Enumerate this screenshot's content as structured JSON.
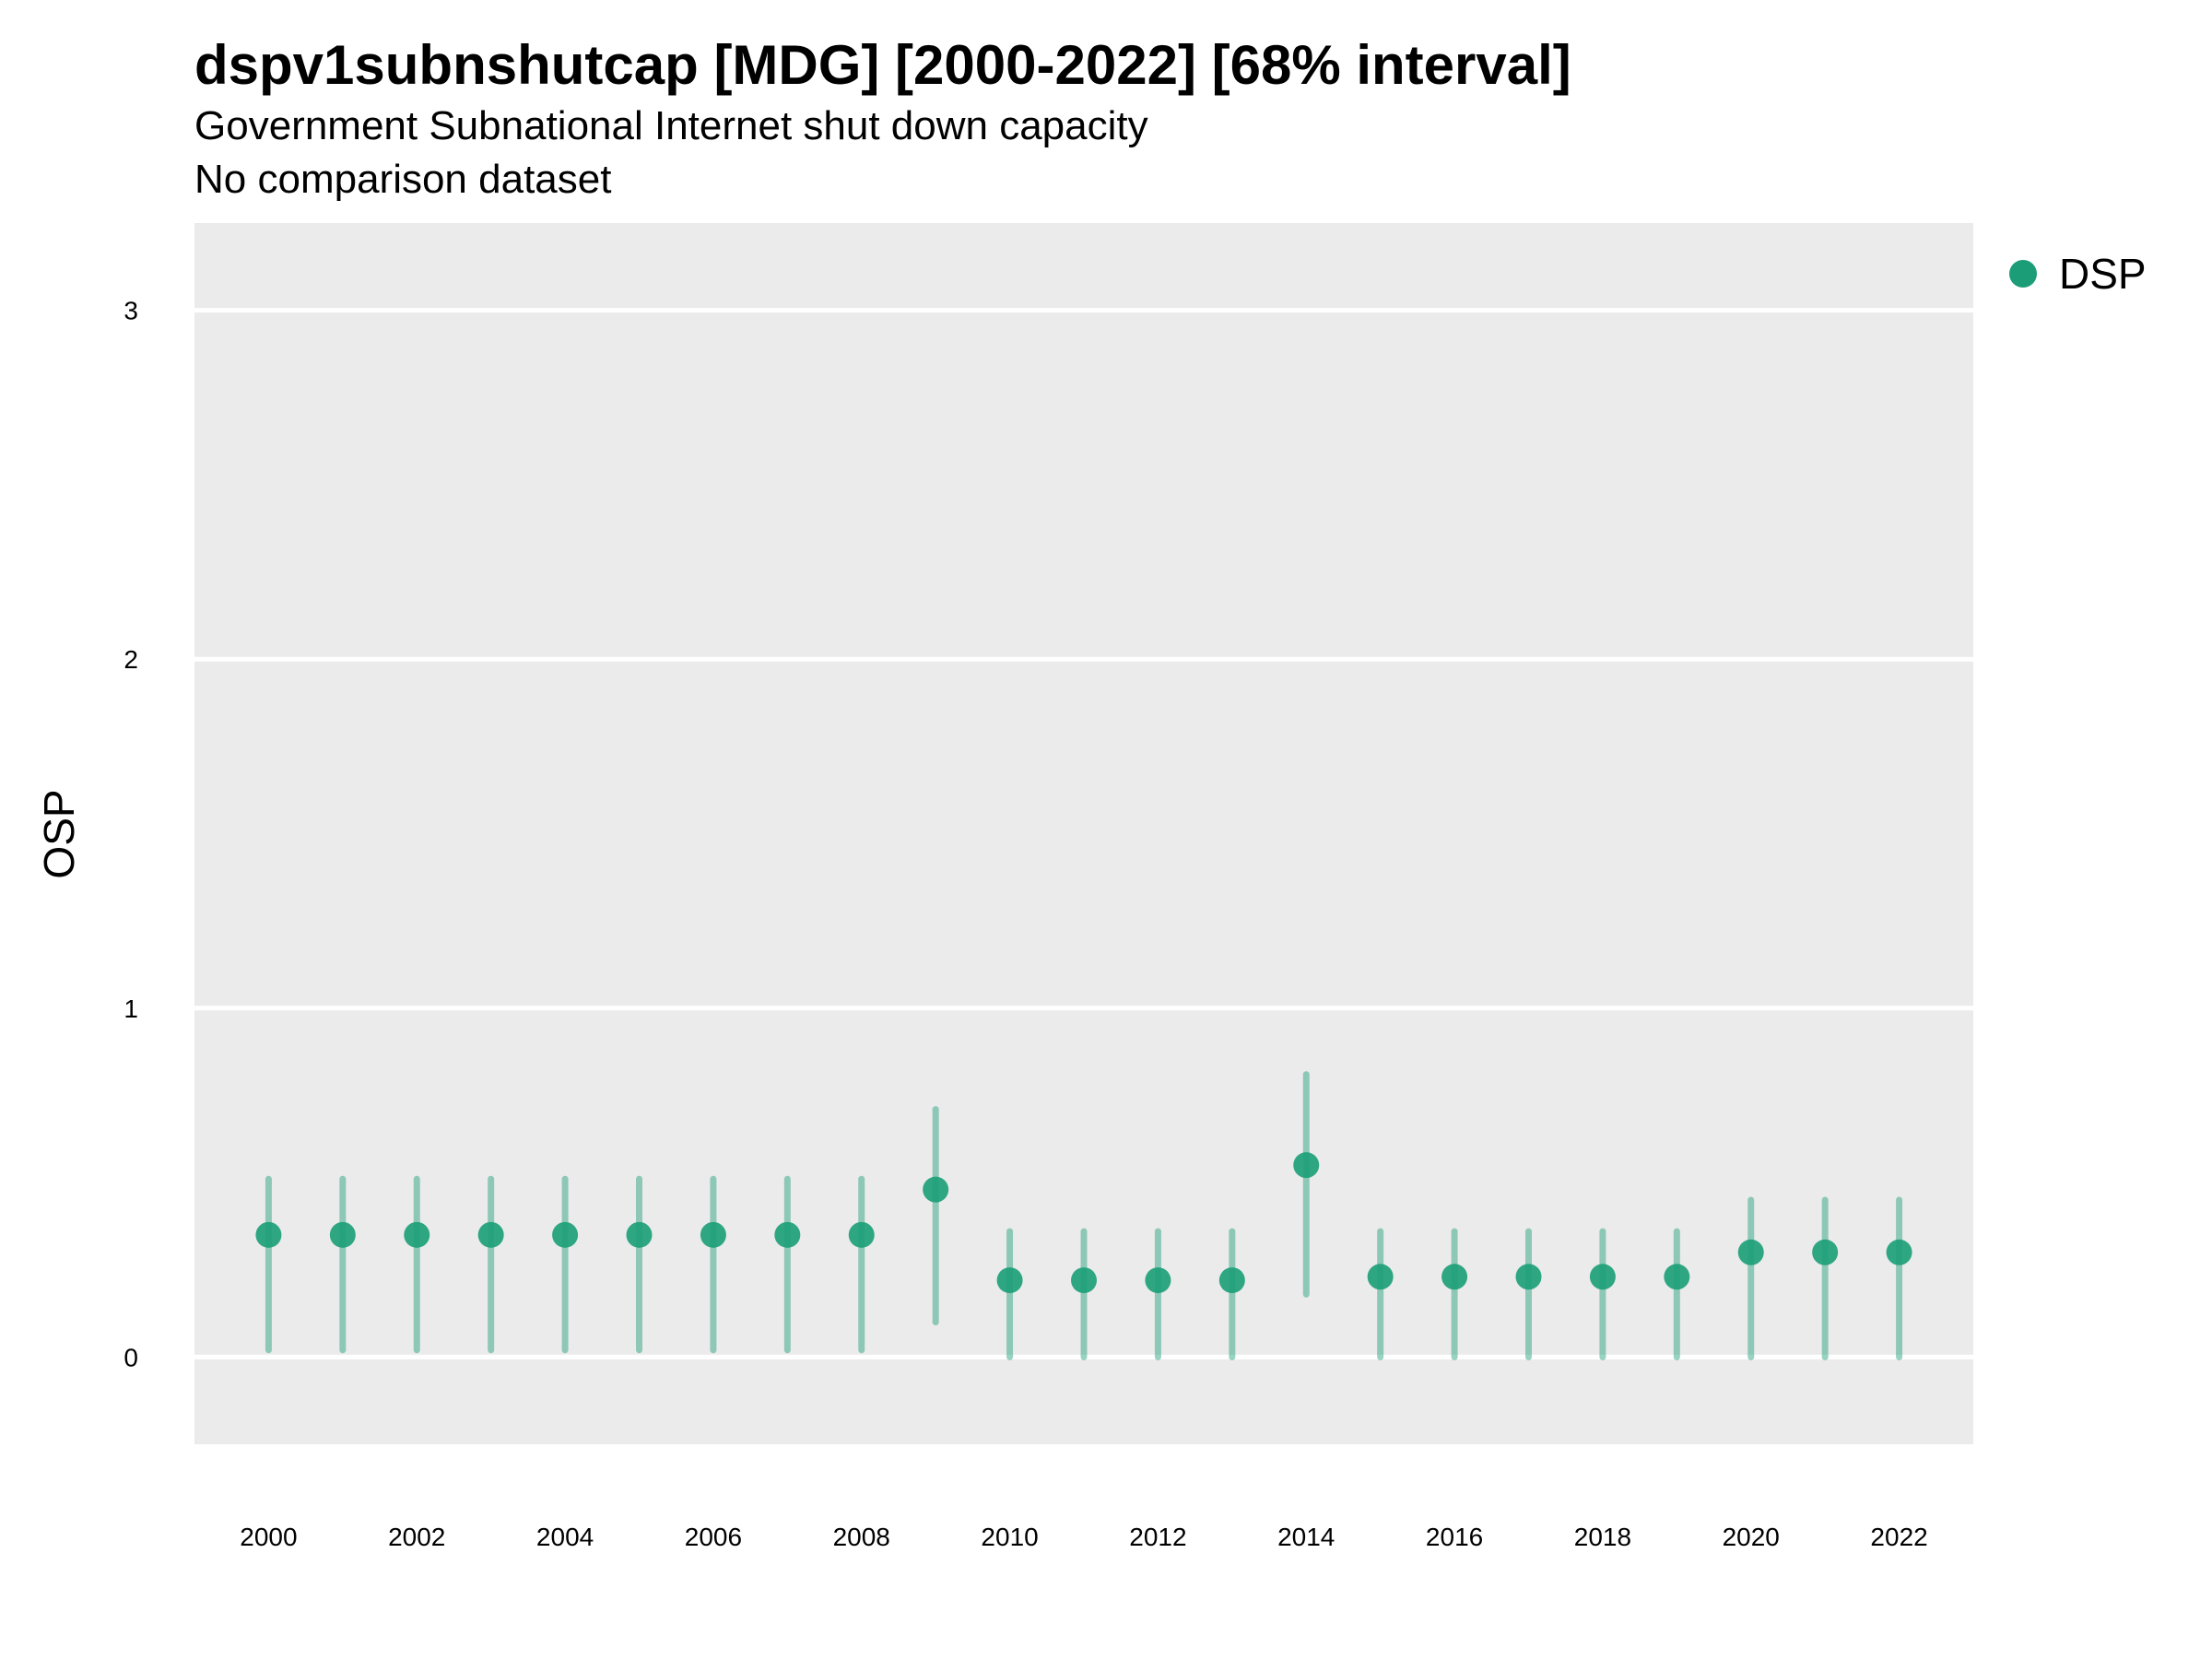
{
  "title": "dspv1subnshutcap [MDG] [2000-2022] [68% interval]",
  "subtitle": "Government Subnational Internet shut down capacity",
  "subtitle2": "No comparison dataset",
  "legend": {
    "label": "DSP",
    "color": "#1b9e77"
  },
  "chart_data": {
    "type": "scatter",
    "ylabel": "OSP",
    "xlabel": "",
    "ylim": [
      -0.25,
      3.25
    ],
    "xlim": [
      1999.0,
      2023.0
    ],
    "yticks": [
      0,
      1,
      2,
      3
    ],
    "xticks": [
      2000,
      2002,
      2004,
      2006,
      2008,
      2010,
      2012,
      2014,
      2016,
      2018,
      2020,
      2022
    ],
    "grid": true,
    "legend_position": "right",
    "series": [
      {
        "name": "DSP",
        "color": "#1b9e77",
        "x": [
          2000,
          2001,
          2002,
          2003,
          2004,
          2005,
          2006,
          2007,
          2008,
          2009,
          2010,
          2011,
          2012,
          2013,
          2014,
          2015,
          2016,
          2017,
          2018,
          2019,
          2020,
          2021,
          2022
        ],
        "y": [
          0.35,
          0.35,
          0.35,
          0.35,
          0.35,
          0.35,
          0.35,
          0.35,
          0.35,
          0.48,
          0.22,
          0.22,
          0.22,
          0.22,
          0.55,
          0.23,
          0.23,
          0.23,
          0.23,
          0.23,
          0.3,
          0.3,
          0.3
        ],
        "lower": [
          0.02,
          0.02,
          0.02,
          0.02,
          0.02,
          0.02,
          0.02,
          0.02,
          0.02,
          0.1,
          0.0,
          0.0,
          0.0,
          0.0,
          0.18,
          0.0,
          0.0,
          0.0,
          0.0,
          0.0,
          0.0,
          0.0,
          0.0
        ],
        "upper": [
          0.51,
          0.51,
          0.51,
          0.51,
          0.51,
          0.51,
          0.51,
          0.51,
          0.51,
          0.71,
          0.36,
          0.36,
          0.36,
          0.36,
          0.81,
          0.36,
          0.36,
          0.36,
          0.36,
          0.36,
          0.45,
          0.45,
          0.45
        ]
      }
    ]
  }
}
